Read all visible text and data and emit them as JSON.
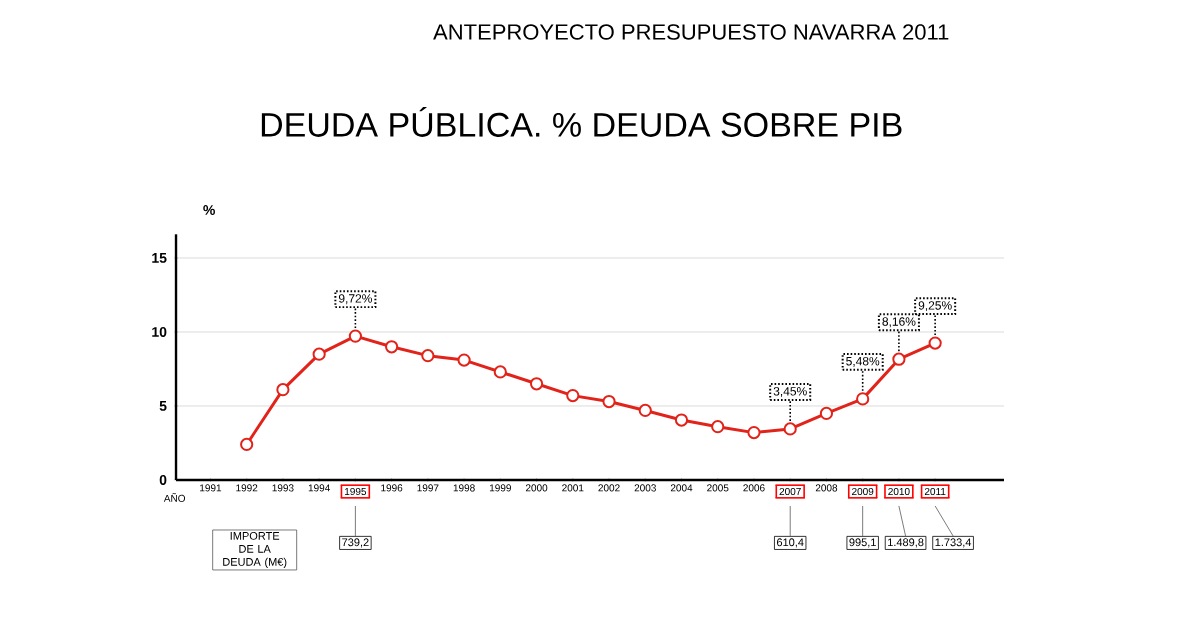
{
  "chart_data": {
    "type": "line",
    "title": "DEUDA PÚBLICA. % DEUDA SOBRE PIB",
    "subtitle": "ANTEPROYECTO PRESUPUESTO NAVARRA 2011",
    "xlabel": "AÑO",
    "ylabel": "%",
    "categories": [
      "1991",
      "1992",
      "1993",
      "1994",
      "1995",
      "1996",
      "1997",
      "1998",
      "1999",
      "2000",
      "2001",
      "2002",
      "2003",
      "2004",
      "2005",
      "2006",
      "2007",
      "2008",
      "2009",
      "2010",
      "2011"
    ],
    "series": [
      {
        "color": "#e2231a",
        "values": [
          null,
          2.4,
          6.1,
          8.5,
          9.72,
          9.0,
          8.4,
          8.1,
          7.3,
          6.5,
          5.7,
          5.3,
          4.7,
          4.05,
          3.6,
          3.2,
          3.45,
          4.5,
          5.48,
          8.16,
          9.25
        ],
        "value_labels": [
          null,
          null,
          null,
          null,
          "9,72%",
          null,
          null,
          null,
          null,
          null,
          null,
          null,
          null,
          null,
          null,
          null,
          "3,45%",
          null,
          "5,48%",
          "8,16%",
          "9,25%"
        ]
      }
    ],
    "ylim": [
      0,
      16.6
    ],
    "yticks": [
      0,
      5,
      10,
      15
    ],
    "grid": "y",
    "marker": "circle",
    "line_style": "solid",
    "annotations": [
      "IMPORTE DE LA DEUDA (M€)",
      "739,2",
      "610,4",
      "995,1",
      "1.489,8",
      "1.733,4"
    ]
  }
}
